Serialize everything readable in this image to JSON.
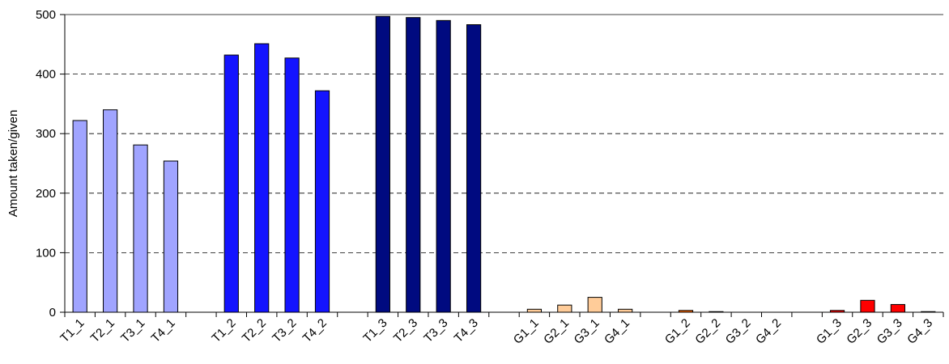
{
  "chart_data": {
    "type": "bar",
    "title": "",
    "xlabel": "",
    "ylabel": "Amount taken/given",
    "ylim": [
      0,
      500
    ],
    "yticks": [
      0,
      100,
      200,
      300,
      400,
      500
    ],
    "grid": "horizontal dashed",
    "legend": "none",
    "groups": [
      {
        "categories": [
          "T1_1",
          "T2_1",
          "T3_1",
          "T4_1"
        ],
        "values": [
          322,
          340,
          281,
          254
        ],
        "color": "#a0a4ff"
      },
      {
        "categories": [
          "T1_2",
          "T2_2",
          "T3_2",
          "T4_2"
        ],
        "values": [
          432,
          451,
          427,
          372
        ],
        "color": "#1414ff"
      },
      {
        "categories": [
          "T1_3",
          "T2_3",
          "T3_3",
          "T4_3"
        ],
        "values": [
          497,
          495,
          490,
          483
        ],
        "color": "#000a80"
      },
      {
        "categories": [
          "G1_1",
          "G2_1",
          "G3_1",
          "G4_1"
        ],
        "values": [
          5,
          12,
          25,
          5
        ],
        "color": "#ffcc99"
      },
      {
        "categories": [
          "G1_2",
          "G2_2",
          "G3_2",
          "G4_2"
        ],
        "values": [
          3,
          1,
          0,
          0
        ],
        "color": "#ff6600"
      },
      {
        "categories": [
          "G1_3",
          "G2_3",
          "G3_3",
          "G4_3"
        ],
        "values": [
          3,
          20,
          13,
          1
        ],
        "color": "#ff0000"
      }
    ]
  }
}
